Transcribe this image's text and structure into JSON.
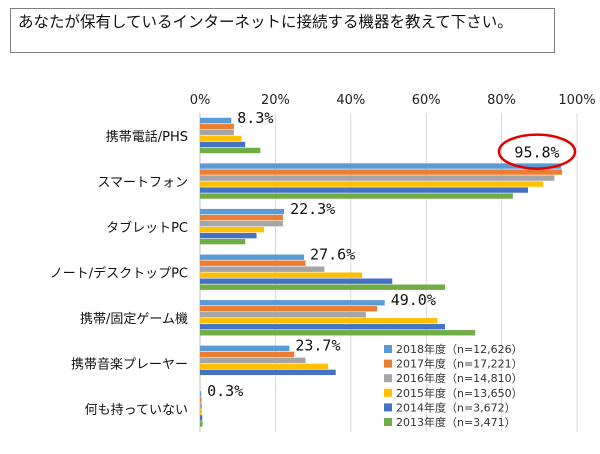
{
  "question": "あなたが保有しているインターネットに接続する機器を教えて下さい。",
  "colors": {
    "s2018": "#5b9bd5",
    "s2017": "#ed7d31",
    "s2016": "#a5a5a5",
    "s2015": "#ffc000",
    "s2014": "#4472c4",
    "s2013": "#70ad47",
    "highlight": "#e00000"
  },
  "chart_data": {
    "type": "bar",
    "orientation": "horizontal",
    "xlim": [
      0,
      100
    ],
    "x_ticks": [
      "0%",
      "20%",
      "40%",
      "60%",
      "80%",
      "100%"
    ],
    "grid": true,
    "legend_position": "bottom-right",
    "categories": [
      "携帯電話/PHS",
      "スマートフォン",
      "タブレットPC",
      "ノート/デスクトップPC",
      "携帯/固定ゲーム機",
      "携帯音楽プレーヤー",
      "何も持っていない"
    ],
    "data_labels": [
      "8.3%",
      "95.8%",
      "22.3%",
      "27.6%",
      "49.0%",
      "23.7%",
      "0.3%"
    ],
    "highlighted_label": "95.8%",
    "series": [
      {
        "name": "2018年度（n=12,626）",
        "color_key": "s2018",
        "values": [
          8.3,
          95.8,
          22.3,
          27.6,
          49.0,
          23.7,
          0.3
        ]
      },
      {
        "name": "2017年度（n=17,221）",
        "color_key": "s2017",
        "values": [
          9,
          96,
          22,
          28,
          47,
          25,
          0.4
        ]
      },
      {
        "name": "2016年度（n=14,810）",
        "color_key": "s2016",
        "values": [
          9,
          94,
          22,
          33,
          44,
          28,
          0.5
        ]
      },
      {
        "name": "2015年度（n=13,650）",
        "color_key": "s2015",
        "values": [
          11,
          91,
          17,
          43,
          63,
          34,
          0.5
        ]
      },
      {
        "name": "2014年度（n=3,672）",
        "color_key": "s2014",
        "values": [
          12,
          87,
          15,
          51,
          65,
          36,
          0.6
        ]
      },
      {
        "name": "2013年度（n=3,471）",
        "color_key": "s2013",
        "values": [
          16,
          83,
          12,
          65,
          73,
          0,
          0.7
        ]
      }
    ]
  }
}
